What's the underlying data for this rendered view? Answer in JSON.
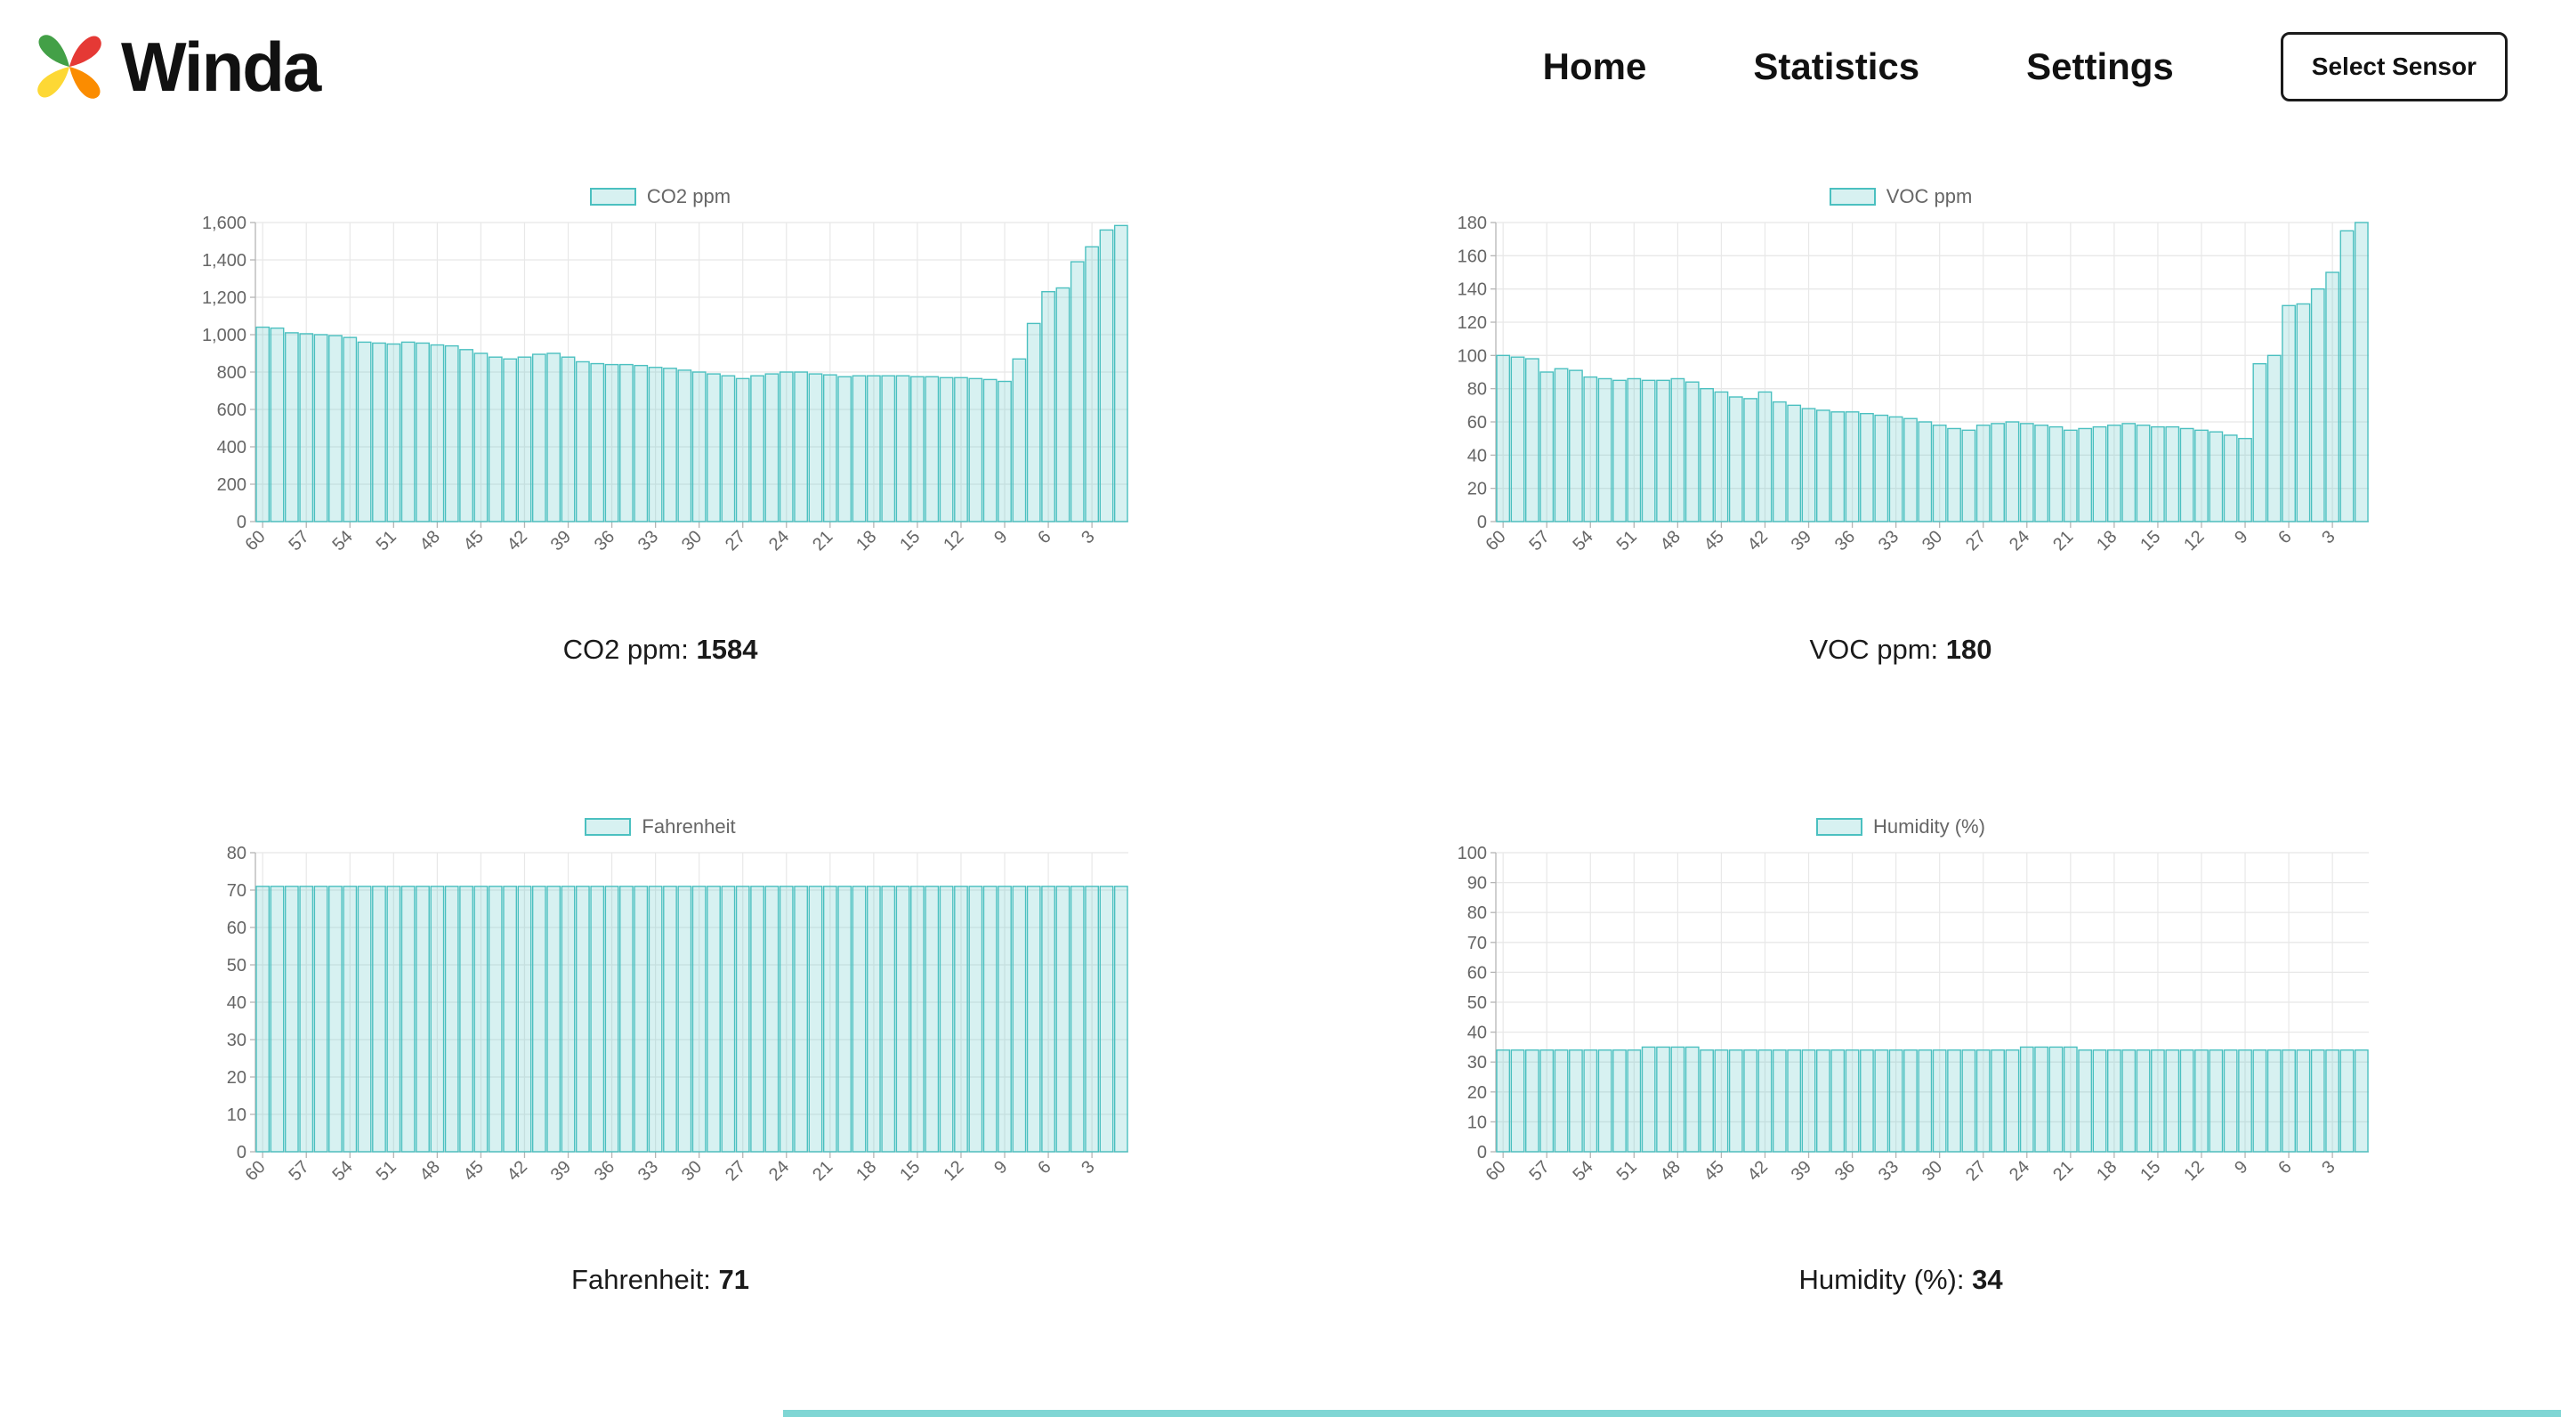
{
  "header": {
    "brand": "Winda",
    "nav": [
      {
        "label": "Home"
      },
      {
        "label": "Statistics"
      },
      {
        "label": "Settings"
      }
    ],
    "select_sensor_label": "Select Sensor"
  },
  "colors": {
    "bar_fill": "rgba(75,192,192,0.22)",
    "bar_border": "#4bc0c0",
    "grid": "#e8e8e8",
    "axis": "#b5b5b5",
    "tick_text": "#666666",
    "logo": [
      "#43a047",
      "#e53935",
      "#fb8c00",
      "#fdd835"
    ]
  },
  "chart_data": [
    {
      "type": "bar",
      "legend": "CO2 ppm",
      "caption_label": "CO2 ppm:",
      "caption_value": "1584",
      "ylim": [
        0,
        1600
      ],
      "ytick_step": 200,
      "label_step": 3,
      "x": [
        60,
        59,
        58,
        57,
        56,
        55,
        54,
        53,
        52,
        51,
        50,
        49,
        48,
        47,
        46,
        45,
        44,
        43,
        42,
        41,
        40,
        39,
        38,
        37,
        36,
        35,
        34,
        33,
        32,
        31,
        30,
        29,
        28,
        27,
        26,
        25,
        24,
        23,
        22,
        21,
        20,
        19,
        18,
        17,
        16,
        15,
        14,
        13,
        12,
        11,
        10,
        9,
        8,
        7,
        6,
        5,
        4,
        3,
        2,
        1
      ],
      "values": [
        1040,
        1035,
        1010,
        1005,
        1000,
        995,
        985,
        960,
        955,
        950,
        960,
        955,
        945,
        940,
        920,
        900,
        880,
        870,
        880,
        895,
        900,
        880,
        855,
        845,
        840,
        840,
        835,
        825,
        820,
        810,
        800,
        790,
        780,
        765,
        780,
        790,
        800,
        800,
        790,
        785,
        775,
        780,
        780,
        780,
        780,
        775,
        775,
        770,
        770,
        765,
        760,
        750,
        870,
        1060,
        1230,
        1250,
        1390,
        1470,
        1560,
        1584
      ]
    },
    {
      "type": "bar",
      "legend": "VOC ppm",
      "caption_label": "VOC ppm:",
      "caption_value": "180",
      "ylim": [
        0,
        180
      ],
      "ytick_step": 20,
      "label_step": 3,
      "x": [
        60,
        59,
        58,
        57,
        56,
        55,
        54,
        53,
        52,
        51,
        50,
        49,
        48,
        47,
        46,
        45,
        44,
        43,
        42,
        41,
        40,
        39,
        38,
        37,
        36,
        35,
        34,
        33,
        32,
        31,
        30,
        29,
        28,
        27,
        26,
        25,
        24,
        23,
        22,
        21,
        20,
        19,
        18,
        17,
        16,
        15,
        14,
        13,
        12,
        11,
        10,
        9,
        8,
        7,
        6,
        5,
        4,
        3,
        2,
        1
      ],
      "values": [
        100,
        99,
        98,
        90,
        92,
        91,
        87,
        86,
        85,
        86,
        85,
        85,
        86,
        84,
        80,
        78,
        75,
        74,
        78,
        72,
        70,
        68,
        67,
        66,
        66,
        65,
        64,
        63,
        62,
        60,
        58,
        56,
        55,
        58,
        59,
        60,
        59,
        58,
        57,
        55,
        56,
        57,
        58,
        59,
        58,
        57,
        57,
        56,
        55,
        54,
        52,
        50,
        95,
        100,
        130,
        131,
        140,
        150,
        175,
        180
      ]
    },
    {
      "type": "bar",
      "legend": "Fahrenheit",
      "caption_label": "Fahrenheit:",
      "caption_value": "71",
      "ylim": [
        0,
        80
      ],
      "ytick_step": 10,
      "label_step": 3,
      "x": [
        60,
        59,
        58,
        57,
        56,
        55,
        54,
        53,
        52,
        51,
        50,
        49,
        48,
        47,
        46,
        45,
        44,
        43,
        42,
        41,
        40,
        39,
        38,
        37,
        36,
        35,
        34,
        33,
        32,
        31,
        30,
        29,
        28,
        27,
        26,
        25,
        24,
        23,
        22,
        21,
        20,
        19,
        18,
        17,
        16,
        15,
        14,
        13,
        12,
        11,
        10,
        9,
        8,
        7,
        6,
        5,
        4,
        3,
        2,
        1
      ],
      "values": [
        71,
        71,
        71,
        71,
        71,
        71,
        71,
        71,
        71,
        71,
        71,
        71,
        71,
        71,
        71,
        71,
        71,
        71,
        71,
        71,
        71,
        71,
        71,
        71,
        71,
        71,
        71,
        71,
        71,
        71,
        71,
        71,
        71,
        71,
        71,
        71,
        71,
        71,
        71,
        71,
        71,
        71,
        71,
        71,
        71,
        71,
        71,
        71,
        71,
        71,
        71,
        71,
        71,
        71,
        71,
        71,
        71,
        71,
        71,
        71
      ]
    },
    {
      "type": "bar",
      "legend": "Humidity (%)",
      "caption_label": "Humidity (%):",
      "caption_value": "34",
      "ylim": [
        0,
        100
      ],
      "ytick_step": 10,
      "label_step": 3,
      "x": [
        60,
        59,
        58,
        57,
        56,
        55,
        54,
        53,
        52,
        51,
        50,
        49,
        48,
        47,
        46,
        45,
        44,
        43,
        42,
        41,
        40,
        39,
        38,
        37,
        36,
        35,
        34,
        33,
        32,
        31,
        30,
        29,
        28,
        27,
        26,
        25,
        24,
        23,
        22,
        21,
        20,
        19,
        18,
        17,
        16,
        15,
        14,
        13,
        12,
        11,
        10,
        9,
        8,
        7,
        6,
        5,
        4,
        3,
        2,
        1
      ],
      "values": [
        34,
        34,
        34,
        34,
        34,
        34,
        34,
        34,
        34,
        34,
        35,
        35,
        35,
        35,
        34,
        34,
        34,
        34,
        34,
        34,
        34,
        34,
        34,
        34,
        34,
        34,
        34,
        34,
        34,
        34,
        34,
        34,
        34,
        34,
        34,
        34,
        35,
        35,
        35,
        35,
        34,
        34,
        34,
        34,
        34,
        34,
        34,
        34,
        34,
        34,
        34,
        34,
        34,
        34,
        34,
        34,
        34,
        34,
        34,
        34
      ]
    }
  ]
}
